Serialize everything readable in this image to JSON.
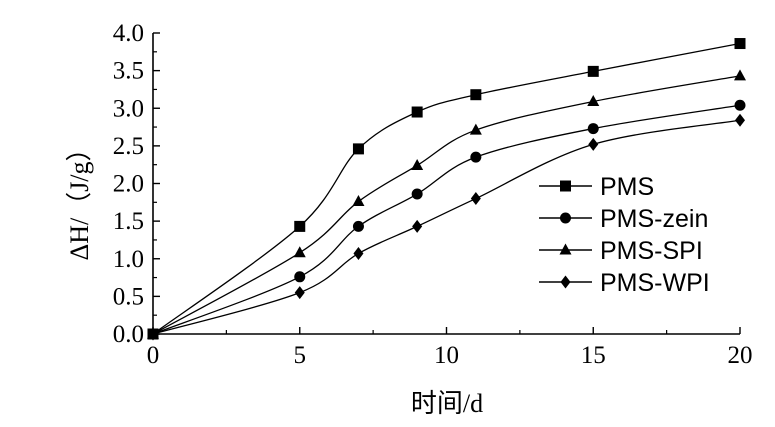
{
  "chart_data": {
    "type": "line",
    "xlabel": "时间/d",
    "ylabel": "ΔH/（J/g）",
    "xlim": [
      0,
      20
    ],
    "ylim": [
      0,
      4.0
    ],
    "xticks": [
      "0",
      "5",
      "10",
      "15",
      "20"
    ],
    "yticks": [
      "0.0",
      "0.5",
      "1.0",
      "1.5",
      "2.0",
      "2.5",
      "3.0",
      "3.5",
      "4.0"
    ],
    "grid": false,
    "legend_position": "right",
    "x": [
      0,
      5,
      7,
      9,
      11,
      15,
      20
    ],
    "series": [
      {
        "name": "PMS",
        "marker": "square",
        "values": [
          0.0,
          1.43,
          2.46,
          2.95,
          3.18,
          3.49,
          3.86
        ]
      },
      {
        "name": "PMS-zein",
        "marker": "circle",
        "values": [
          0.0,
          0.76,
          1.43,
          1.86,
          2.35,
          2.73,
          3.04
        ]
      },
      {
        "name": "PMS-SPI",
        "marker": "triangle",
        "values": [
          0.0,
          1.08,
          1.76,
          2.24,
          2.71,
          3.09,
          3.43
        ]
      },
      {
        "name": "PMS-WPI",
        "marker": "diamond",
        "values": [
          0.0,
          0.55,
          1.07,
          1.43,
          1.8,
          2.52,
          2.84
        ]
      }
    ]
  }
}
